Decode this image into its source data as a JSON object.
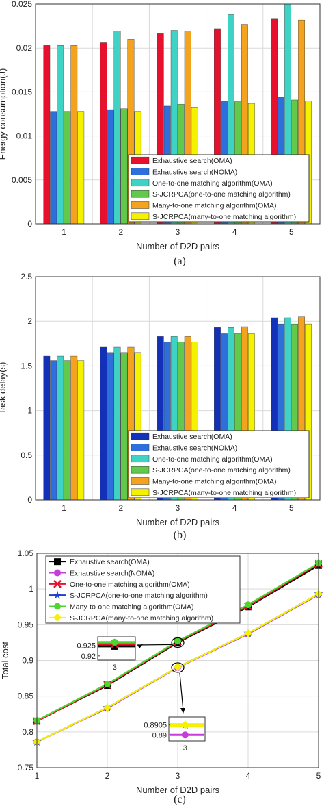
{
  "chart_data": [
    {
      "type": "bar",
      "panel_label": "(a)",
      "xlabel": "Number of D2D pairs",
      "ylabel": "Energy consumption(J)",
      "categories": [
        "1",
        "2",
        "3",
        "4",
        "5"
      ],
      "ylim": [
        0,
        0.025
      ],
      "yticks": [
        "0",
        "0.005",
        "0.01",
        "0.015",
        "0.02",
        "0.025"
      ],
      "grid": true,
      "legend_position": "bottom-right",
      "series": [
        {
          "name": "Exhaustive search(OMA)",
          "color": "#e8112d",
          "values": [
            0.0203,
            0.0206,
            0.0217,
            0.0222,
            0.0233
          ]
        },
        {
          "name": "Exhaustive search(NOMA)",
          "color": "#2f6fdc",
          "values": [
            0.0128,
            0.013,
            0.0134,
            0.014,
            0.0144
          ]
        },
        {
          "name": "One-to-one matching algorithm(OMA)",
          "color": "#3fd3c6",
          "values": [
            0.0203,
            0.0219,
            0.022,
            0.0238,
            0.025
          ]
        },
        {
          "name": "S-JCRPCA(one-to-one matching algorithm)",
          "color": "#62c94c",
          "values": [
            0.0128,
            0.0131,
            0.0136,
            0.0139,
            0.0141
          ]
        },
        {
          "name": "Many-to-one matching algorithm(OMA)",
          "color": "#f3a31d",
          "values": [
            0.0203,
            0.021,
            0.0219,
            0.0227,
            0.0232
          ]
        },
        {
          "name": "S-JCRPCA(many-to-one matching algorithm)",
          "color": "#f5f200",
          "values": [
            0.0128,
            0.0128,
            0.0133,
            0.0137,
            0.014
          ]
        }
      ]
    },
    {
      "type": "bar",
      "panel_label": "(b)",
      "xlabel": "Number of D2D pairs",
      "ylabel": "Task delay(s)",
      "categories": [
        "1",
        "2",
        "3",
        "4",
        "5"
      ],
      "ylim": [
        0,
        2.5
      ],
      "yticks": [
        "0",
        "0.5",
        "1",
        "1.5",
        "2",
        "2.5"
      ],
      "grid": true,
      "legend_position": "bottom-right",
      "series": [
        {
          "name": "Exhaustive search(OMA)",
          "color": "#1231b8",
          "values": [
            1.61,
            1.71,
            1.83,
            1.93,
            2.04
          ]
        },
        {
          "name": "Exhaustive search(NOMA)",
          "color": "#2f6fdc",
          "values": [
            1.56,
            1.65,
            1.77,
            1.86,
            1.97
          ]
        },
        {
          "name": "One-to-one matching algorithm(OMA)",
          "color": "#3fd3c6",
          "values": [
            1.61,
            1.71,
            1.83,
            1.93,
            2.04
          ]
        },
        {
          "name": "S-JCRPCA(one-to-one matching algorithm)",
          "color": "#62c94c",
          "values": [
            1.56,
            1.65,
            1.77,
            1.86,
            1.97
          ]
        },
        {
          "name": "Many-to-one matching algorithm(OMA)",
          "color": "#f3a31d",
          "values": [
            1.61,
            1.71,
            1.83,
            1.94,
            2.05
          ]
        },
        {
          "name": "S-JCRPCA(many-to-one matching algorithm)",
          "color": "#f5f200",
          "values": [
            1.56,
            1.65,
            1.77,
            1.86,
            1.97
          ]
        }
      ]
    },
    {
      "type": "line",
      "panel_label": "(c)",
      "xlabel": "Number of D2D pairs",
      "ylabel": "Total cost",
      "x": [
        1,
        2,
        3,
        4,
        5
      ],
      "xlim": [
        1,
        5
      ],
      "ylim": [
        0.75,
        1.05
      ],
      "yticks": [
        "0.75",
        "0.8",
        "0.85",
        "0.9",
        "0.95",
        "1",
        "1.05"
      ],
      "xticks": [
        "1",
        "2",
        "3",
        "4",
        "5"
      ],
      "grid": true,
      "legend_position": "top-left",
      "series": [
        {
          "name": "Exhaustive search(OMA)",
          "color": "#000000",
          "marker": "square",
          "values": [
            0.815,
            0.865,
            0.925,
            0.975,
            1.033
          ]
        },
        {
          "name": "Exhaustive search(NOMA)",
          "color": "#c83cdc",
          "marker": "circle",
          "values": [
            0.786,
            0.833,
            0.89,
            0.937,
            0.992
          ]
        },
        {
          "name": "One-to-one matching algorithm(OMA)",
          "color": "#e8112d",
          "marker": "x",
          "values": [
            0.815,
            0.866,
            0.926,
            0.976,
            1.035
          ]
        },
        {
          "name": "S-JCRPCA(one-to-one matching algorithm)",
          "color": "#1f3fd0",
          "marker": "star",
          "values": [
            0.786,
            0.834,
            0.8905,
            0.938,
            0.993
          ]
        },
        {
          "name": "Many-to-one matching algorithm(OMA)",
          "color": "#4fd62e",
          "marker": "circle",
          "values": [
            0.816,
            0.867,
            0.927,
            0.978,
            1.036
          ]
        },
        {
          "name": "S-JCRPCA(many-to-one matching algorithm)",
          "color": "#f5f200",
          "marker": "diamond",
          "values": [
            0.786,
            0.834,
            0.8905,
            0.938,
            0.993
          ]
        }
      ],
      "insets": [
        {
          "name": "upper-zoom",
          "x_tick": "3",
          "yticks": [
            "0.92",
            "0.925"
          ],
          "ylim": [
            0.918,
            0.929
          ],
          "series_values": [
            0.9245,
            0.9255,
            0.9265
          ]
        },
        {
          "name": "lower-zoom",
          "x_tick": "3",
          "yticks": [
            "0.89",
            "0.8905"
          ],
          "ylim": [
            0.8897,
            0.8909
          ],
          "series_values": [
            0.8905,
            0.8905,
            0.89
          ]
        }
      ]
    }
  ]
}
